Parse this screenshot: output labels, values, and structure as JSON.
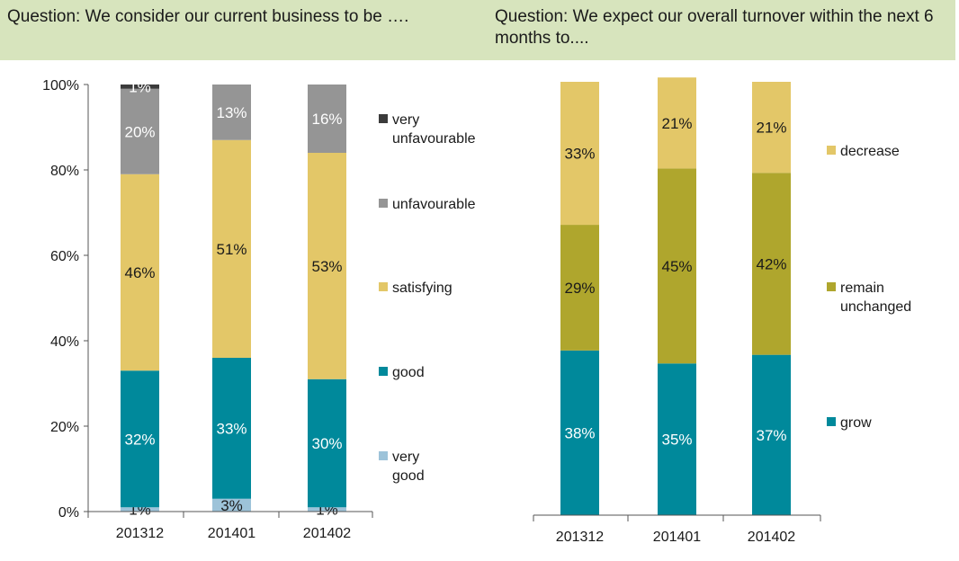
{
  "chart_data": [
    {
      "type": "bar",
      "title": "Question: We consider our current business to be ….",
      "categories": [
        "201312",
        "201401",
        "201402"
      ],
      "y_ticks": [
        "0%",
        "20%",
        "40%",
        "60%",
        "80%",
        "100%"
      ],
      "ylim": [
        0,
        100
      ],
      "legend_position": "right",
      "series": [
        {
          "name": "very good",
          "color": "#9dc3d9",
          "values": [
            1,
            3,
            1
          ],
          "labels": [
            "1%",
            "3%",
            "1%"
          ]
        },
        {
          "name": "good",
          "color": "#00899b",
          "values": [
            32,
            33,
            30
          ],
          "labels": [
            "32%",
            "33%",
            "30%"
          ]
        },
        {
          "name": "satisfying",
          "color": "#e3c768",
          "values": [
            46,
            51,
            53
          ],
          "labels": [
            "46%",
            "51%",
            "53%"
          ]
        },
        {
          "name": "unfavourable",
          "color": "#959595",
          "values": [
            20,
            13,
            16
          ],
          "labels": [
            "20%",
            "13%",
            "16%"
          ]
        },
        {
          "name": "very unfavourable",
          "color": "#3b3b3b",
          "values": [
            1,
            0,
            0
          ],
          "labels": [
            "1%",
            "",
            ""
          ]
        }
      ]
    },
    {
      "type": "bar",
      "title": "Question: We expect our overall turnover within the next 6 months to....",
      "categories": [
        "201312",
        "201401",
        "201402"
      ],
      "ylim": [
        0,
        100
      ],
      "legend_position": "right",
      "series": [
        {
          "name": "grow",
          "color": "#00899b",
          "values": [
            38,
            35,
            37
          ],
          "labels": [
            "38%",
            "35%",
            "37%"
          ]
        },
        {
          "name": "remain unchanged",
          "color": "#afa62d",
          "values": [
            29,
            45,
            42
          ],
          "labels": [
            "29%",
            "45%",
            "42%"
          ]
        },
        {
          "name": "decrease",
          "color": "#e3c768",
          "values": [
            33,
            21,
            21
          ],
          "labels": [
            "33%",
            "21%",
            "21%"
          ]
        }
      ]
    }
  ]
}
